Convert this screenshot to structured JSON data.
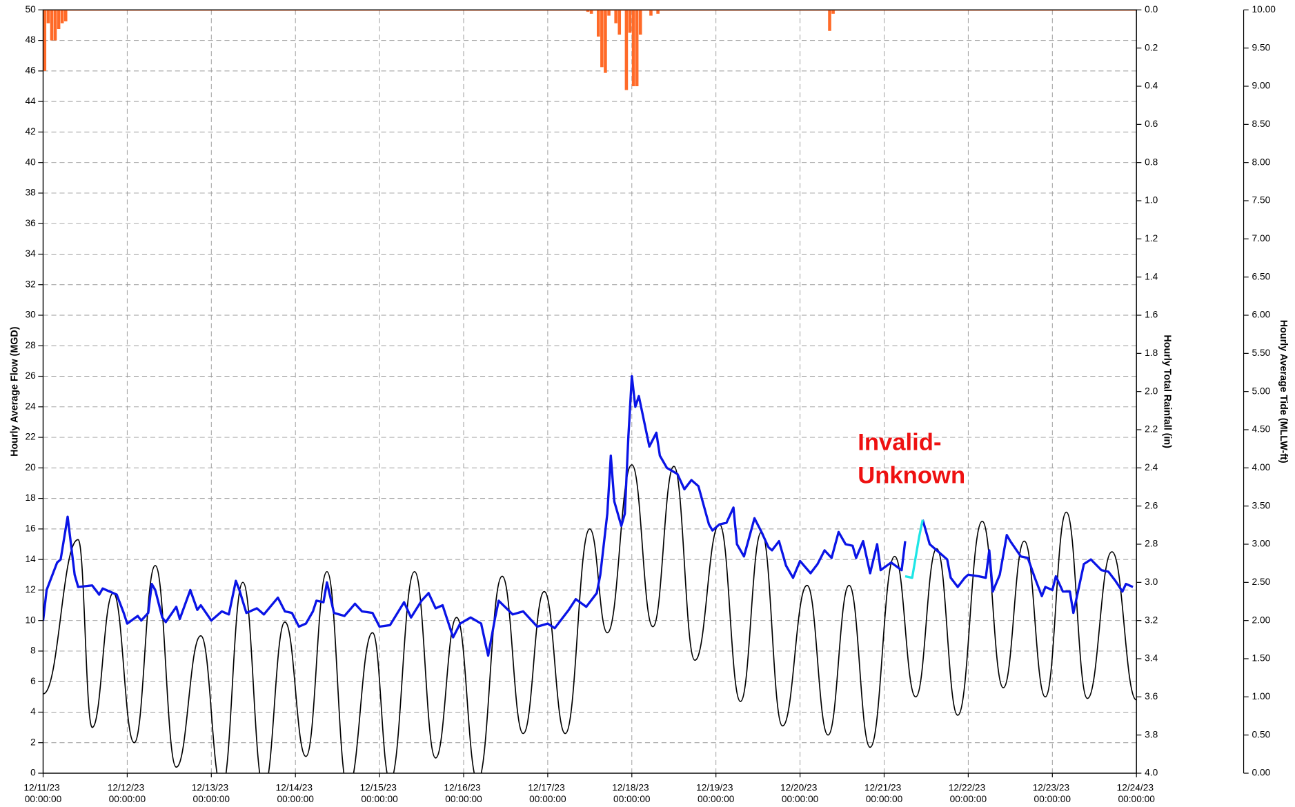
{
  "chart_data": {
    "type": "line",
    "ylabel": "Hourly Average Flow (MGD)",
    "y2label": "Hourly Total Rainfall (in)",
    "y3label": "Hourly Average Tide (MLLW-ft)",
    "annotation": {
      "lines": [
        "Invalid-",
        "Unknown"
      ],
      "color": "#ee1111"
    },
    "grid": true,
    "xlim": [
      "12/11/23 00:00:00",
      "12/24/23 00:00:00"
    ],
    "xticks": [
      "12/11/23 00:00:00",
      "12/12/23 00:00:00",
      "12/13/23 00:00:00",
      "12/14/23 00:00:00",
      "12/15/23 00:00:00",
      "12/16/23 00:00:00",
      "12/17/23 00:00:00",
      "12/18/23 00:00:00",
      "12/19/23 00:00:00",
      "12/20/23 00:00:00",
      "12/21/23 00:00:00",
      "12/22/23 00:00:00",
      "12/23/23 00:00:00",
      "12/24/23 00:00:00"
    ],
    "ylim": [
      0,
      50
    ],
    "yticks": [
      0,
      2,
      4,
      6,
      8,
      10,
      12,
      14,
      16,
      18,
      20,
      22,
      24,
      26,
      28,
      30,
      32,
      34,
      36,
      38,
      40,
      42,
      44,
      46,
      48,
      50
    ],
    "y2lim": [
      4,
      0
    ],
    "y2ticks": [
      {
        "value": 0,
        "label": "0.0"
      },
      0.2,
      0.4,
      0.6,
      0.8,
      {
        "value": 1,
        "label": "1.0"
      },
      1.2,
      1.4,
      1.6,
      1.8,
      {
        "value": 2,
        "label": "2.0"
      },
      2.2,
      2.4,
      2.6,
      2.8,
      {
        "value": 3,
        "label": "3.0"
      },
      3.2,
      3.4,
      3.6,
      3.8,
      {
        "value": 4,
        "label": "4.0"
      }
    ],
    "y3lim": [
      0,
      10
    ],
    "y3ticks": [
      {
        "value": 0,
        "label": "0.00"
      },
      {
        "value": 0.5,
        "label": "0.50"
      },
      {
        "value": 1,
        "label": "1.00"
      },
      {
        "value": 1.5,
        "label": "1.50"
      },
      {
        "value": 2,
        "label": "2.00"
      },
      {
        "value": 2.5,
        "label": "2.50"
      },
      {
        "value": 3,
        "label": "3.00"
      },
      {
        "value": 3.5,
        "label": "3.50"
      },
      {
        "value": 4,
        "label": "4.00"
      },
      {
        "value": 4.5,
        "label": "4.50"
      },
      {
        "value": 5,
        "label": "5.00"
      },
      {
        "value": 5.5,
        "label": "5.50"
      },
      {
        "value": 6,
        "label": "6.00"
      },
      {
        "value": 6.5,
        "label": "6.50"
      },
      {
        "value": 7,
        "label": "7.00"
      },
      {
        "value": 7.5,
        "label": "7.50"
      },
      {
        "value": 8,
        "label": "8.00"
      },
      {
        "value": 8.5,
        "label": "8.50"
      },
      {
        "value": 9,
        "label": "9.00"
      },
      {
        "value": 9.5,
        "label": "9.50"
      },
      {
        "value": 10,
        "label": "10.00"
      }
    ],
    "series": [
      {
        "type": "bar",
        "axis": "y2",
        "color": "#ff6a28",
        "x": [
          "12/11/23 00:00:00",
          "12/11/23 01:00:00",
          "12/11/23 02:00:00",
          "12/11/23 03:00:00",
          "12/11/23 04:00:00",
          "12/11/23 05:00:00",
          "12/11/23 06:00:00",
          "12/17/23 11:00:00",
          "12/17/23 12:00:00",
          "12/17/23 14:00:00",
          "12/17/23 15:00:00",
          "12/17/23 16:00:00",
          "12/17/23 17:00:00",
          "12/17/23 19:00:00",
          "12/17/23 20:00:00",
          "12/17/23 22:00:00",
          "12/17/23 23:00:00",
          "12/18/23 00:00:00",
          "12/18/23 01:00:00",
          "12/18/23 02:00:00",
          "12/18/23 05:00:00",
          "12/18/23 07:00:00",
          "12/20/23 08:00:00",
          "12/20/23 09:00:00"
        ],
        "values": [
          0.32,
          0.07,
          0.16,
          0.16,
          0.1,
          0.07,
          0.06,
          0.01,
          0.02,
          0.14,
          0.3,
          0.33,
          0.03,
          0.07,
          0.13,
          0.42,
          0.12,
          0.4,
          0.4,
          0.13,
          0.03,
          0.02,
          0.11,
          0.02
        ]
      },
      {
        "type": "line",
        "axis": "y3",
        "color": "#000000",
        "smooth": true,
        "x": [
          "12/11/23 00:00:00",
          "12/11/23 10:00:00",
          "12/11/23 14:00:00",
          "12/11/23 20:00:00",
          "12/12/23 02:00:00",
          "12/12/23 08:00:00",
          "12/12/23 14:00:00",
          "12/12/23 21:00:00",
          "12/13/23 03:00:00",
          "12/13/23 09:00:00",
          "12/13/23 15:00:00",
          "12/13/23 21:00:00",
          "12/14/23 03:00:00",
          "12/14/23 09:00:00",
          "12/14/23 15:00:00",
          "12/14/23 22:00:00",
          "12/15/23 03:00:00",
          "12/15/23 10:00:00",
          "12/15/23 16:00:00",
          "12/15/23 22:00:00",
          "12/16/23 04:00:00",
          "12/16/23 11:00:00",
          "12/16/23 17:00:00",
          "12/16/23 23:00:00",
          "12/17/23 05:00:00",
          "12/17/23 12:00:00",
          "12/17/23 17:00:00",
          "12/18/23 00:00:00",
          "12/18/23 06:00:00",
          "12/18/23 12:00:00",
          "12/18/23 18:00:00",
          "12/19/23 01:00:00",
          "12/19/23 07:00:00",
          "12/19/23 13:00:00",
          "12/19/23 19:00:00",
          "12/20/23 02:00:00",
          "12/20/23 08:00:00",
          "12/20/23 14:00:00",
          "12/20/23 20:00:00",
          "12/21/23 03:00:00",
          "12/21/23 09:00:00",
          "12/21/23 15:00:00",
          "12/21/23 21:00:00",
          "12/22/23 04:00:00",
          "12/22/23 10:00:00",
          "12/22/23 16:00:00",
          "12/22/23 22:00:00",
          "12/23/23 04:00:00",
          "12/23/23 10:00:00",
          "12/23/23 17:00:00",
          "12/24/23 00:00:00"
        ],
        "values": [
          1.04,
          3.06,
          0.6,
          2.36,
          0.4,
          2.72,
          0.08,
          1.8,
          -0.2,
          2.5,
          -0.2,
          1.98,
          0.22,
          2.64,
          -0.2,
          1.84,
          -0.1,
          2.64,
          0.2,
          2.04,
          -0.1,
          2.58,
          0.52,
          2.38,
          0.52,
          3.2,
          1.84,
          4.04,
          1.92,
          4.02,
          1.48,
          3.26,
          0.94,
          3.16,
          0.62,
          2.46,
          0.5,
          2.46,
          0.34,
          2.84,
          1.0,
          2.94,
          0.76,
          3.3,
          1.12,
          3.04,
          1.0,
          3.42,
          0.98,
          2.9,
          0.96
        ]
      },
      {
        "type": "line",
        "axis": "y",
        "color": "#0a14e6",
        "x": [
          "12/11/23 00:00:00",
          "12/11/23 01:00:00",
          "12/11/23 04:00:00",
          "12/11/23 05:00:00",
          "12/11/23 07:00:00",
          "12/11/23 09:00:00",
          "12/11/23 10:00:00",
          "12/11/23 14:00:00",
          "12/11/23 16:00:00",
          "12/11/23 17:00:00",
          "12/11/23 21:00:00",
          "12/11/23 23:00:00",
          "12/12/23 00:00:00",
          "12/12/23 03:00:00",
          "12/12/23 04:00:00",
          "12/12/23 06:00:00",
          "12/12/23 07:00:00",
          "12/12/23 08:00:00",
          "12/12/23 10:00:00",
          "12/12/23 11:00:00",
          "12/12/23 14:00:00",
          "12/12/23 15:00:00",
          "12/12/23 18:00:00",
          "12/12/23 20:00:00",
          "12/12/23 21:00:00",
          "12/13/23 00:00:00",
          "12/13/23 03:00:00",
          "12/13/23 05:00:00",
          "12/13/23 07:00:00",
          "12/13/23 08:00:00",
          "12/13/23 10:00:00",
          "12/13/23 13:00:00",
          "12/13/23 15:00:00",
          "12/13/23 19:00:00",
          "12/13/23 21:00:00",
          "12/13/23 23:00:00",
          "12/14/23 01:00:00",
          "12/14/23 03:00:00",
          "12/14/23 05:00:00",
          "12/14/23 06:00:00",
          "12/14/23 08:00:00",
          "12/14/23 09:00:00",
          "12/14/23 11:00:00",
          "12/14/23 14:00:00",
          "12/14/23 17:00:00",
          "12/14/23 19:00:00",
          "12/14/23 22:00:00",
          "12/15/23 00:00:00",
          "12/15/23 03:00:00",
          "12/15/23 07:00:00",
          "12/15/23 09:00:00",
          "12/15/23 12:00:00",
          "12/15/23 14:00:00",
          "12/15/23 16:00:00",
          "12/15/23 18:00:00",
          "12/15/23 21:00:00",
          "12/15/23 23:00:00",
          "12/16/23 02:00:00",
          "12/16/23 05:00:00",
          "12/16/23 07:00:00",
          "12/16/23 09:00:00",
          "12/16/23 10:00:00",
          "12/16/23 14:00:00",
          "12/16/23 17:00:00",
          "12/16/23 21:00:00",
          "12/17/23 00:00:00",
          "12/17/23 02:00:00",
          "12/17/23 06:00:00",
          "12/17/23 08:00:00",
          "12/17/23 11:00:00",
          "12/17/23 14:00:00",
          "12/17/23 15:00:00",
          "12/17/23 17:00:00",
          "12/17/23 18:00:00",
          "12/17/23 19:00:00",
          "12/17/23 21:00:00",
          "12/17/23 22:00:00",
          "12/17/23 23:00:00",
          "12/18/23 00:00:00",
          "12/18/23 01:00:00",
          "12/18/23 02:00:00",
          "12/18/23 05:00:00",
          "12/18/23 07:00:00",
          "12/18/23 08:00:00",
          "12/18/23 10:00:00",
          "12/18/23 13:00:00",
          "12/18/23 15:00:00",
          "12/18/23 17:00:00",
          "12/18/23 19:00:00",
          "12/18/23 22:00:00",
          "12/18/23 23:00:00",
          "12/19/23 01:00:00",
          "12/19/23 03:00:00",
          "12/19/23 05:00:00",
          "12/19/23 06:00:00",
          "12/19/23 08:00:00",
          "12/19/23 11:00:00",
          "12/19/23 13:00:00",
          "12/19/23 15:00:00",
          "12/19/23 16:00:00",
          "12/19/23 18:00:00",
          "12/19/23 20:00:00",
          "12/19/23 22:00:00",
          "12/20/23 00:00:00",
          "12/20/23 03:00:00",
          "12/20/23 05:00:00",
          "12/20/23 07:00:00",
          "12/20/23 09:00:00",
          "12/20/23 11:00:00",
          "12/20/23 13:00:00",
          "12/20/23 15:00:00",
          "12/20/23 16:00:00",
          "12/20/23 18:00:00",
          "12/20/23 20:00:00",
          "12/20/23 22:00:00",
          "12/20/23 23:00:00",
          "12/21/23 02:00:00",
          "12/21/23 05:00:00",
          "12/21/23 06:00:00",
          "12/21/23 07:00:00",
          "12/21/23 11:00:00",
          "12/21/23 13:00:00",
          "12/21/23 16:00:00",
          "12/21/23 18:00:00",
          "12/21/23 19:00:00",
          "12/21/23 21:00:00",
          "12/21/23 23:00:00",
          "12/22/23 00:00:00",
          "12/22/23 03:00:00",
          "12/22/23 05:00:00",
          "12/22/23 06:00:00",
          "12/22/23 07:00:00",
          "12/22/23 09:00:00",
          "12/22/23 11:00:00",
          "12/22/23 12:00:00",
          "12/22/23 15:00:00",
          "12/22/23 17:00:00",
          "12/22/23 19:00:00",
          "12/22/23 21:00:00",
          "12/22/23 22:00:00",
          "12/23/23 00:00:00",
          "12/23/23 01:00:00",
          "12/23/23 03:00:00",
          "12/23/23 05:00:00",
          "12/23/23 06:00:00",
          "12/23/23 09:00:00",
          "12/23/23 11:00:00",
          "12/23/23 14:00:00",
          "12/23/23 16:00:00",
          "12/23/23 18:00:00",
          "12/23/23 20:00:00",
          "12/23/23 21:00:00",
          "12/23/23 23:00:00"
        ],
        "values": [
          10,
          12,
          13.8,
          14,
          16.8,
          13,
          12.2,
          12.3,
          11.7,
          12.1,
          11.7,
          10.5,
          9.8,
          10.3,
          10,
          10.5,
          12.4,
          12,
          10.2,
          9.9,
          10.9,
          10.1,
          12,
          10.7,
          11,
          10,
          10.6,
          10.4,
          12.6,
          12,
          10.5,
          10.8,
          10.4,
          11.5,
          10.6,
          10.5,
          9.6,
          9.8,
          10.6,
          11.3,
          11.2,
          12.5,
          10.5,
          10.3,
          11.1,
          10.6,
          10.5,
          9.6,
          9.7,
          11.2,
          10.2,
          11.3,
          11.8,
          10.8,
          11,
          8.9,
          9.8,
          10.2,
          9.8,
          7.7,
          10.2,
          11.3,
          10.4,
          10.6,
          9.6,
          9.8,
          9.5,
          10.7,
          11.4,
          10.9,
          11.8,
          13,
          17,
          20.8,
          17.8,
          16.2,
          17,
          22,
          26,
          24,
          24.7,
          21.4,
          22.3,
          20.8,
          20,
          19.6,
          18.6,
          19.2,
          18.8,
          16.3,
          15.9,
          16.3,
          16.4,
          17.4,
          15,
          14.2,
          16.7,
          15.8,
          14.8,
          14.6,
          15.2,
          13.6,
          12.8,
          13.9,
          13.1,
          13.7,
          14.6,
          14.1,
          15.8,
          15,
          14.9,
          14.1,
          15.2,
          13.1,
          15,
          13.3,
          13.8,
          13.3,
          15.2,
          null,
          16.6,
          15,
          14.4,
          14,
          12.8,
          12.2,
          12.8,
          13,
          12.9,
          12.8,
          14.6,
          11.9,
          13,
          15.6,
          15.2,
          14.2,
          14.1,
          12.8,
          11.6,
          12.2,
          12,
          12.9,
          11.9,
          11.9,
          10.5,
          13.7,
          14,
          13.3,
          13.2,
          12.6,
          11.9,
          12.4,
          12.2
        ]
      },
      {
        "type": "line",
        "axis": "y",
        "color": "#1ee6e6",
        "x": [
          "12/21/23 06:00:00",
          "12/21/23 08:00:00",
          "12/21/23 10:00:00",
          "12/21/23 11:00:00"
        ],
        "values": [
          12.9,
          12.8,
          15.5,
          16.6
        ]
      }
    ]
  }
}
